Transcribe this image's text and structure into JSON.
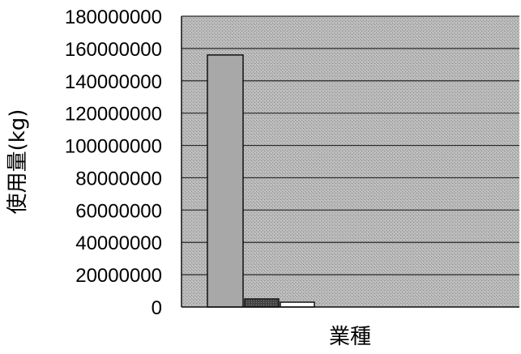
{
  "colors": {
    "plot_background": "#b4b4b4",
    "gridline": "#2a2a2a",
    "bar_1": "#a8a8a8",
    "bar_2": "#3c3c3c",
    "bar_3": "#ffffff",
    "bar_outline": "#111111"
  },
  "chart_data": {
    "type": "bar",
    "title": "",
    "xlabel": "業種",
    "ylabel": "使用量(kg)",
    "ylim": [
      0,
      180000000
    ],
    "yticks": [
      0,
      20000000,
      40000000,
      60000000,
      80000000,
      100000000,
      120000000,
      140000000,
      160000000,
      180000000
    ],
    "grid": true,
    "legend": "none",
    "categories": [
      "",
      "",
      ""
    ],
    "values": [
      156000000,
      5000000,
      3000000
    ]
  }
}
